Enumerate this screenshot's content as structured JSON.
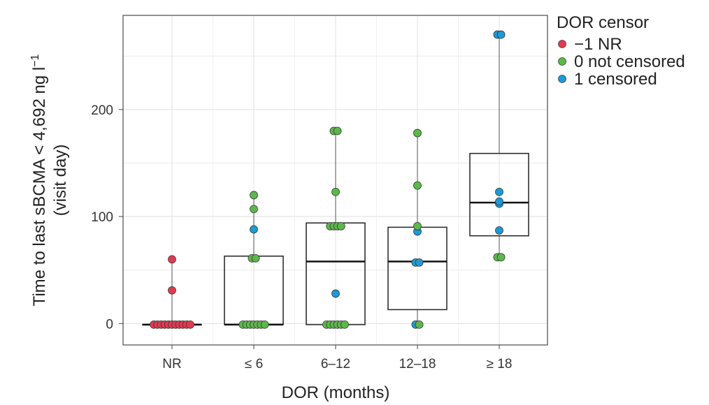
{
  "chart_data": {
    "type": "box",
    "title": "",
    "xlabel": "DOR (months)",
    "ylabel": {
      "line1": "Time to last sBCMA < 4,692 ng l",
      "superscript": "−1",
      "line2": "(visit day)"
    },
    "ylim": [
      -20,
      288
    ],
    "yticks": [
      0,
      100,
      200
    ],
    "grid": true,
    "categories": [
      "NR",
      "≤ 6",
      "6–12",
      "12–18",
      "≥ 18"
    ],
    "legend": {
      "title": "DOR censor",
      "position": "right-top",
      "entries": [
        {
          "key": "-1",
          "label": "−1 NR",
          "color": "#e2394f"
        },
        {
          "key": "0",
          "label": "0 not censored",
          "color": "#5cb84a"
        },
        {
          "key": "1",
          "label": "1 censored",
          "color": "#1b9ad6"
        }
      ]
    },
    "boxes": [
      {
        "category": "NR",
        "whisker_low": -1,
        "q1": -1,
        "median": -1,
        "q3": -1,
        "whisker_high": 60
      },
      {
        "category": "≤ 6",
        "whisker_low": -1,
        "q1": -1,
        "median": -1,
        "q3": 63,
        "whisker_high": 120
      },
      {
        "category": "6–12",
        "whisker_low": -1,
        "q1": -1,
        "median": 58,
        "q3": 94,
        "whisker_high": 180
      },
      {
        "category": "12–18",
        "whisker_low": -1,
        "q1": 13,
        "median": 58,
        "q3": 90,
        "whisker_high": 178
      },
      {
        "category": "≥ 18",
        "whisker_low": 62,
        "q1": 82,
        "median": 113,
        "q3": 159,
        "whisker_high": 270
      }
    ],
    "points": [
      {
        "category": "NR",
        "values": [
          60,
          31,
          -1,
          -1,
          -1,
          -1,
          -1,
          -1,
          -1,
          -1,
          -1,
          -1,
          -1
        ],
        "censor": [
          -1,
          -1,
          -1,
          -1,
          -1,
          -1,
          -1,
          -1,
          -1,
          -1,
          -1,
          -1,
          -1
        ]
      },
      {
        "category": "≤ 6",
        "values": [
          120,
          107,
          88,
          61,
          61,
          -1,
          -1,
          -1,
          -1,
          -1,
          -1,
          -1
        ],
        "censor": [
          0,
          0,
          1,
          0,
          0,
          0,
          0,
          0,
          0,
          0,
          0,
          0
        ]
      },
      {
        "category": "6–12",
        "values": [
          180,
          180,
          123,
          91,
          91,
          91,
          91,
          28,
          -1,
          -1,
          -1,
          -1,
          -1,
          -1
        ],
        "censor": [
          0,
          0,
          0,
          0,
          0,
          0,
          0,
          1,
          0,
          0,
          0,
          0,
          0,
          0
        ]
      },
      {
        "category": "12–18",
        "values": [
          178,
          129,
          91,
          86,
          57,
          57,
          -1,
          -1
        ],
        "censor": [
          0,
          0,
          0,
          1,
          1,
          1,
          1,
          0
        ]
      },
      {
        "category": "≥ 18",
        "values": [
          270,
          270,
          123,
          114,
          112,
          87,
          62,
          62
        ],
        "censor": [
          1,
          1,
          1,
          1,
          1,
          1,
          0,
          0
        ]
      }
    ]
  }
}
